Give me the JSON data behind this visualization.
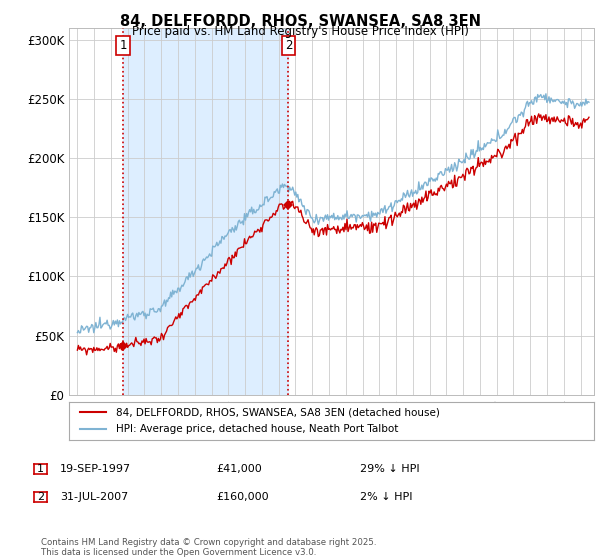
{
  "title1": "84, DELFFORDD, RHOS, SWANSEA, SA8 3EN",
  "title2": "Price paid vs. HM Land Registry's House Price Index (HPI)",
  "ytick_labels": [
    "£0",
    "£50K",
    "£100K",
    "£150K",
    "£200K",
    "£250K",
    "£300K"
  ],
  "yticks": [
    0,
    50000,
    100000,
    150000,
    200000,
    250000,
    300000
  ],
  "ylim": [
    0,
    310000
  ],
  "xlim_min": 1994.5,
  "xlim_max": 2025.8,
  "legend_line1": "84, DELFFORDD, RHOS, SWANSEA, SA8 3EN (detached house)",
  "legend_line2": "HPI: Average price, detached house, Neath Port Talbot",
  "sale1_date": "19-SEP-1997",
  "sale1_price_str": "£41,000",
  "sale1_hpi": "29% ↓ HPI",
  "sale2_date": "31-JUL-2007",
  "sale2_price_str": "£160,000",
  "sale2_hpi": "2% ↓ HPI",
  "footnote": "Contains HM Land Registry data © Crown copyright and database right 2025.\nThis data is licensed under the Open Government Licence v3.0.",
  "red_color": "#cc0000",
  "blue_color": "#7fb3d3",
  "shade_color": "#ddeeff",
  "grid_color": "#cccccc",
  "bg_color": "#ffffff",
  "sale1_x": 1997.72,
  "sale1_y": 41000,
  "sale2_x": 2007.58,
  "sale2_y": 160000
}
